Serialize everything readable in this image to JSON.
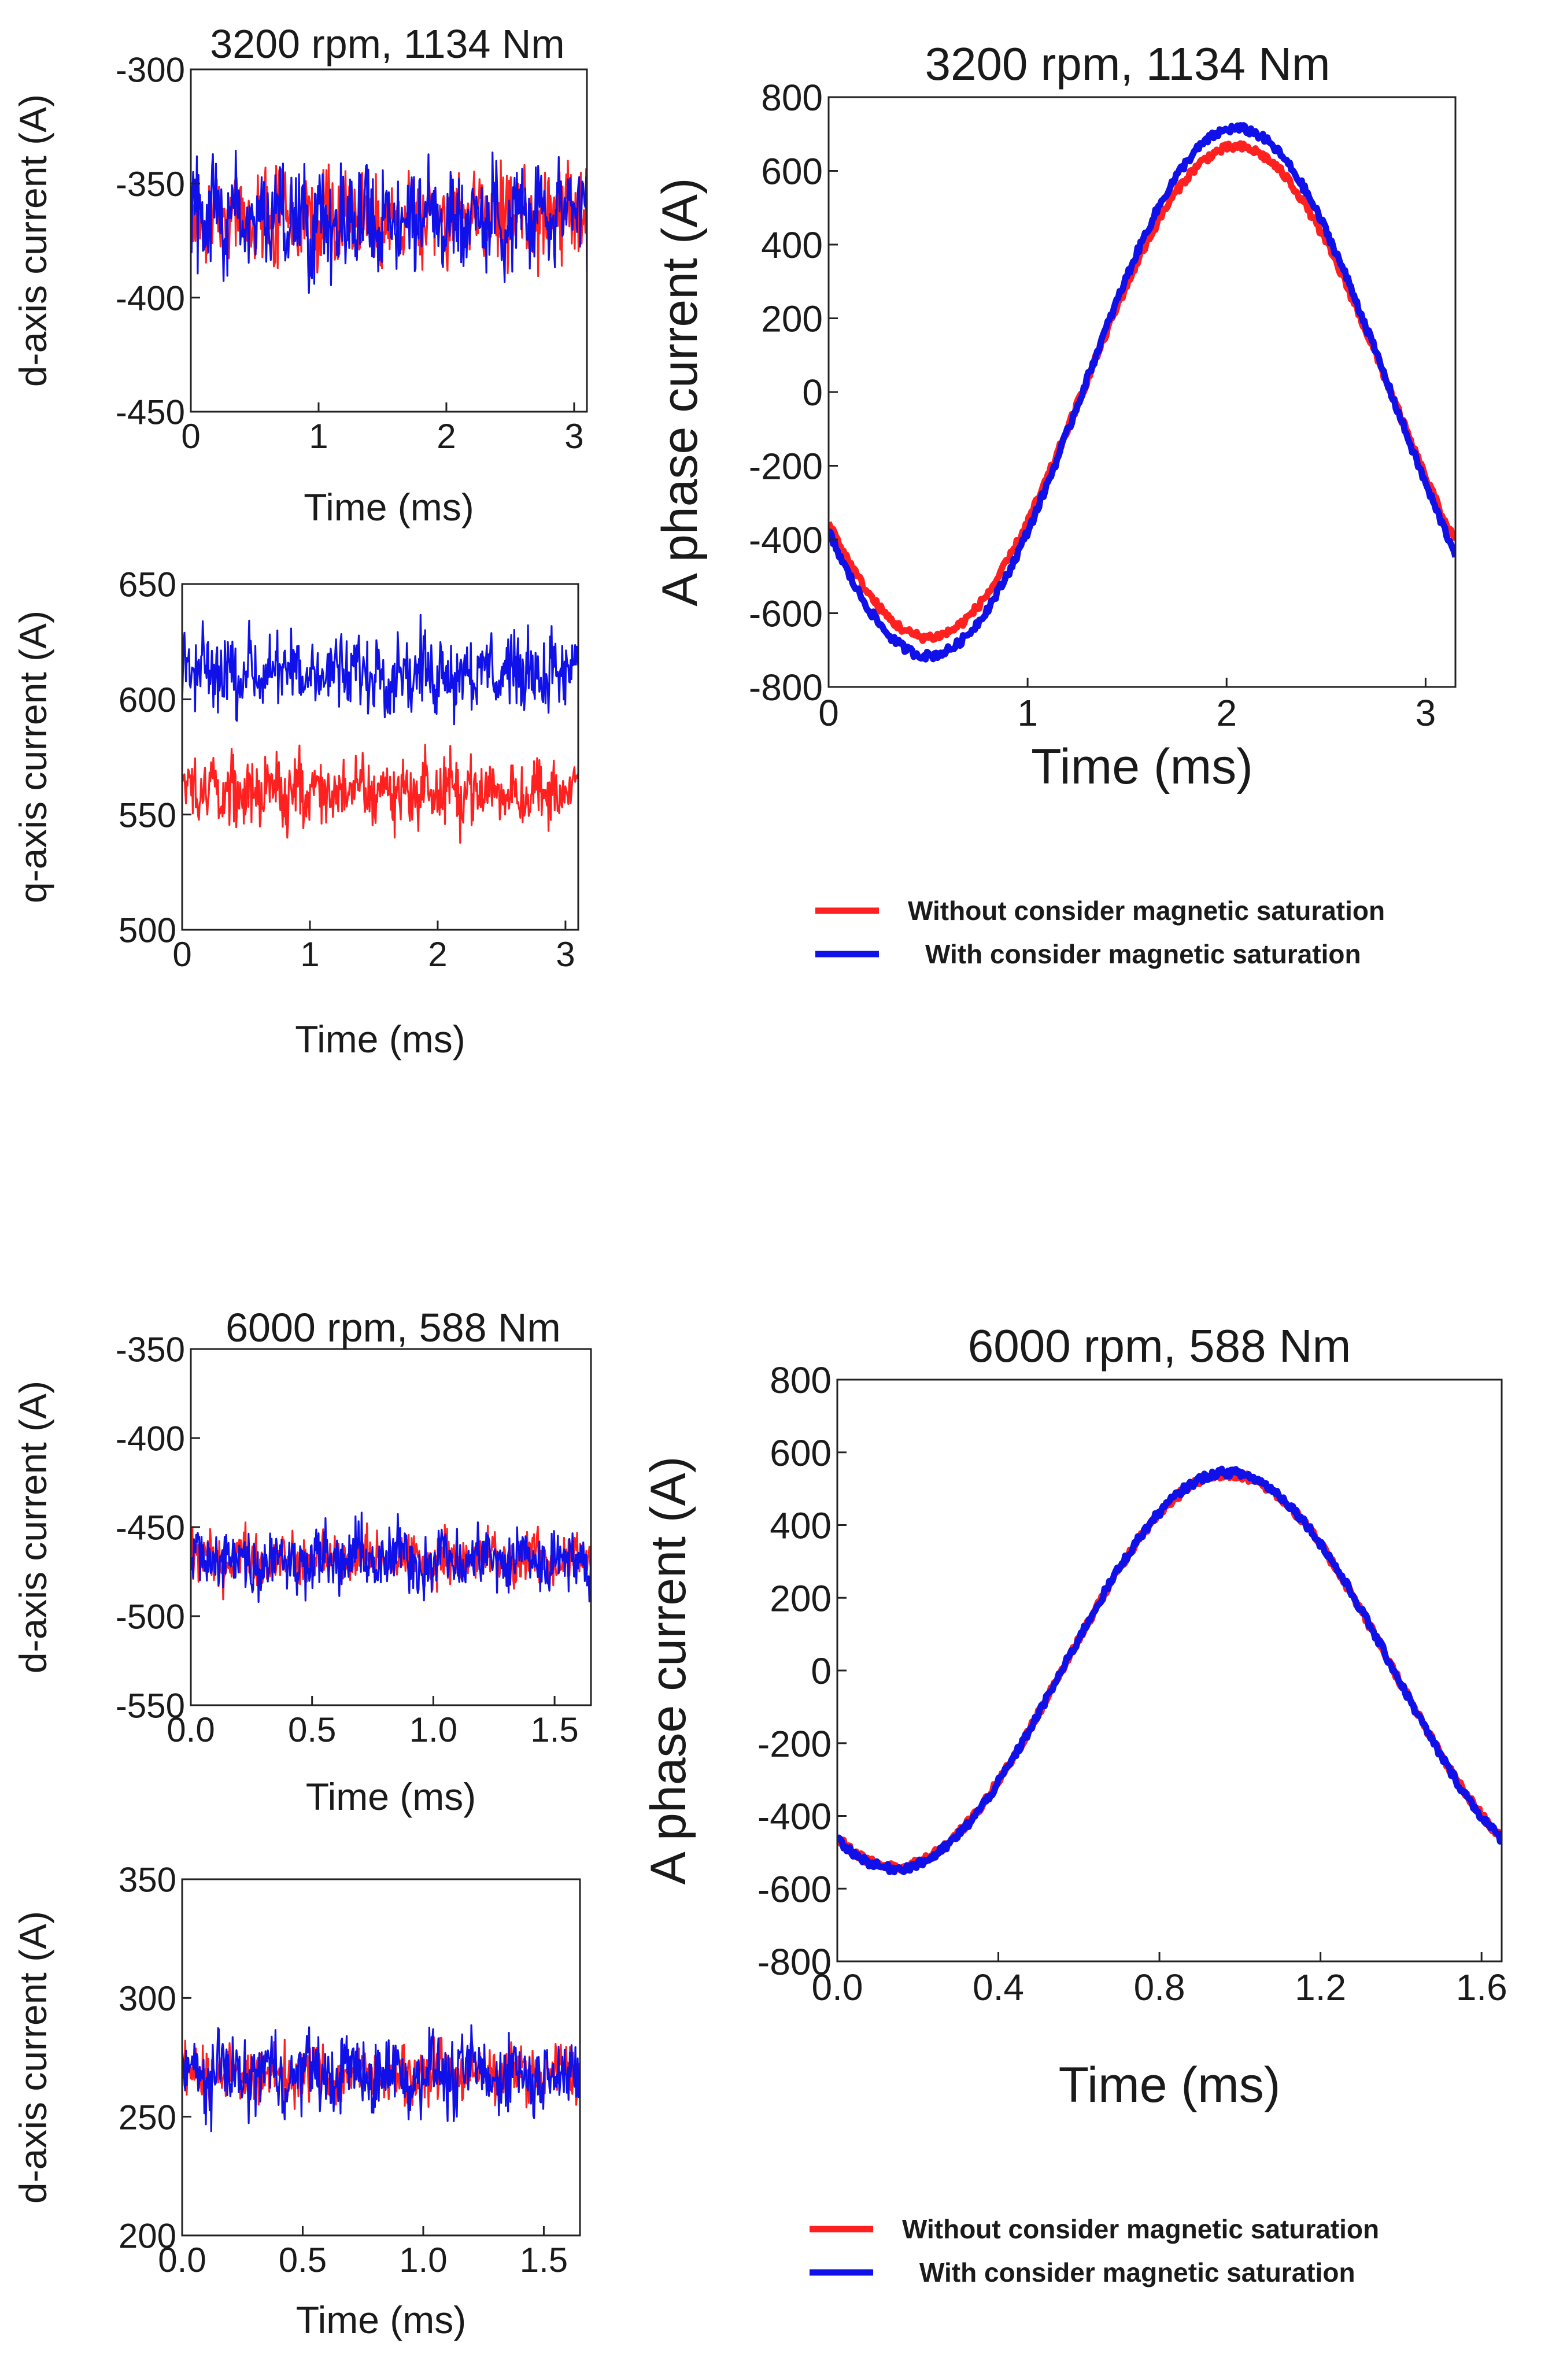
{
  "figure": {
    "colors": {
      "red": "#ff2020",
      "blue": "#1010e8"
    }
  },
  "legend": [
    {
      "label": "Without consider magnetic saturation",
      "series": "red"
    },
    {
      "label": "With consider magnetic saturation",
      "series": "blue"
    }
  ],
  "chart_data": [
    {
      "id": "a",
      "type": "line",
      "title": "3200 rpm, 1134 Nm",
      "xlabel": "Time (ms)",
      "ylabel": "d-axis current (A)",
      "xlim": [
        0,
        3.1
      ],
      "ylim": [
        -450,
        -300
      ],
      "xticks": [
        "0",
        "1",
        "2",
        "3"
      ],
      "yticks": [
        "-300",
        "-350",
        "-400",
        "-450"
      ],
      "series": [
        {
          "name": "Without consider magnetic saturation",
          "color": "red",
          "mean": -365,
          "amplitude": 22
        },
        {
          "name": "With consider magnetic saturation",
          "color": "blue",
          "mean": -365,
          "amplitude": 25
        }
      ]
    },
    {
      "id": "b",
      "type": "line",
      "title": "",
      "xlabel": "Time (ms)",
      "ylabel": "q-axis current (A)",
      "xlim": [
        0,
        3.1
      ],
      "ylim": [
        500,
        650
      ],
      "xticks": [
        "0",
        "1",
        "2",
        "3"
      ],
      "yticks": [
        "650",
        "600",
        "550",
        "500"
      ],
      "series": [
        {
          "name": "Without consider magnetic saturation",
          "color": "red",
          "mean": 560,
          "amplitude": 16
        },
        {
          "name": "With consider magnetic saturation",
          "color": "blue",
          "mean": 612,
          "amplitude": 18
        }
      ]
    },
    {
      "id": "c",
      "type": "line",
      "title": "3200 rpm, 1134 Nm",
      "xlabel": "Time (ms)",
      "ylabel": "A phase current (A)",
      "xlim": [
        0,
        3.15
      ],
      "ylim": [
        -800,
        800
      ],
      "xticks": [
        "0",
        "1",
        "2",
        "3"
      ],
      "yticks": [
        "800",
        "600",
        "400",
        "200",
        "0",
        "-200",
        "-400",
        "-600",
        "-800"
      ],
      "series": [
        {
          "name": "Without consider magnetic saturation",
          "color": "red",
          "amplitude": 665,
          "period_ms": 3.1,
          "peak_time_ms": 2.05
        },
        {
          "name": "With consider magnetic saturation",
          "color": "blue",
          "amplitude": 715,
          "period_ms": 3.1,
          "peak_time_ms": 2.05
        }
      ]
    },
    {
      "id": "d",
      "type": "line",
      "title": "6000 rpm, 588 Nm",
      "xlabel": "Time (ms)",
      "ylabel": "d-axis current (A)",
      "xlim": [
        0,
        1.65
      ],
      "ylim": [
        -550,
        -350
      ],
      "xticks": [
        "0.0",
        "0.5",
        "1.0",
        "1.5"
      ],
      "yticks": [
        "-350",
        "-400",
        "-450",
        "-500",
        "-550"
      ],
      "series": [
        {
          "name": "Without consider magnetic saturation",
          "color": "red",
          "mean": -468,
          "amplitude": 16
        },
        {
          "name": "With consider magnetic saturation",
          "color": "blue",
          "mean": -468,
          "amplitude": 20
        }
      ]
    },
    {
      "id": "e",
      "type": "line",
      "title": "",
      "xlabel": "Time (ms)",
      "ylabel": "d-axis current (A)",
      "xlim": [
        0,
        1.65
      ],
      "ylim": [
        200,
        350
      ],
      "xticks": [
        "0.0",
        "0.5",
        "1.0",
        "1.5"
      ],
      "yticks": [
        "350",
        "300",
        "250",
        "200"
      ],
      "series": [
        {
          "name": "Without consider magnetic saturation",
          "color": "red",
          "mean": 268,
          "amplitude": 13
        },
        {
          "name": "With consider magnetic saturation",
          "color": "blue",
          "mean": 268,
          "amplitude": 17
        }
      ]
    },
    {
      "id": "f",
      "type": "line",
      "title": "6000 rpm, 588 Nm",
      "xlabel": "Time (ms)",
      "ylabel": "A phase current (A)",
      "xlim": [
        0,
        1.65
      ],
      "ylim": [
        -800,
        800
      ],
      "xticks": [
        "0.0",
        "0.4",
        "0.8",
        "1.2",
        "1.6"
      ],
      "yticks": [
        "800",
        "600",
        "400",
        "200",
        "0",
        "-200",
        "-400",
        "-600",
        "-800"
      ],
      "series": [
        {
          "name": "Without consider magnetic saturation",
          "color": "red",
          "amplitude": 540,
          "period_ms": 1.65,
          "peak_time_ms": 0.97
        },
        {
          "name": "With consider magnetic saturation",
          "color": "blue",
          "amplitude": 545,
          "period_ms": 1.65,
          "peak_time_ms": 0.97
        }
      ]
    }
  ]
}
